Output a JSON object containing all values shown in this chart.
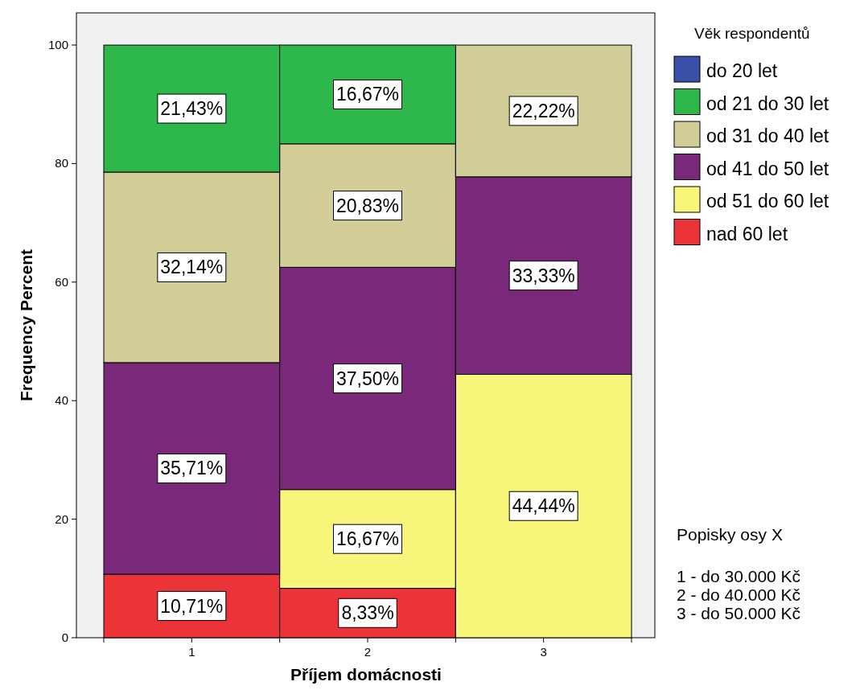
{
  "chart_data": {
    "type": "bar",
    "stacked": true,
    "xlabel": "Příjem domácnosti",
    "ylabel": "Frequency Percent",
    "legend_title": "Věk respondentů",
    "legend": "right",
    "categories": [
      "1",
      "2",
      "3"
    ],
    "ylim": [
      0,
      100
    ],
    "yticks": [
      0,
      20,
      40,
      60,
      80,
      100
    ],
    "grid": false,
    "series": [
      {
        "name": "nad 60 let",
        "color": "#ec3338",
        "values": [
          10.71,
          8.33,
          null
        ],
        "value_labels": [
          "10,71%",
          "8,33%",
          null
        ]
      },
      {
        "name": "od 51 do 60 let",
        "color": "#f7f57a",
        "values": [
          null,
          16.67,
          44.44
        ],
        "value_labels": [
          null,
          "16,67%",
          "44,44%"
        ]
      },
      {
        "name": "od 41 do 50 let",
        "color": "#79287a",
        "values": [
          35.71,
          37.5,
          33.33
        ],
        "value_labels": [
          "35,71%",
          "37,50%",
          "33,33%"
        ]
      },
      {
        "name": "od 31 do 40 let",
        "color": "#d3ce97",
        "values": [
          32.14,
          20.83,
          22.22
        ],
        "value_labels": [
          "32,14%",
          "20,83%",
          "22,22%"
        ]
      },
      {
        "name": "od 21 do 30 let",
        "color": "#2eb84b",
        "values": [
          21.43,
          16.67,
          null
        ],
        "value_labels": [
          "21,43%",
          "16,67%",
          null
        ]
      },
      {
        "name": "do 20 let",
        "color": "#3a4fa8",
        "values": [
          null,
          null,
          null
        ]
      }
    ],
    "annotations": [
      "Popisky osy X",
      "1 - do 30.000 Kč",
      "2 - do 40.000 Kč",
      "3 - do 50.000 Kč"
    ]
  }
}
